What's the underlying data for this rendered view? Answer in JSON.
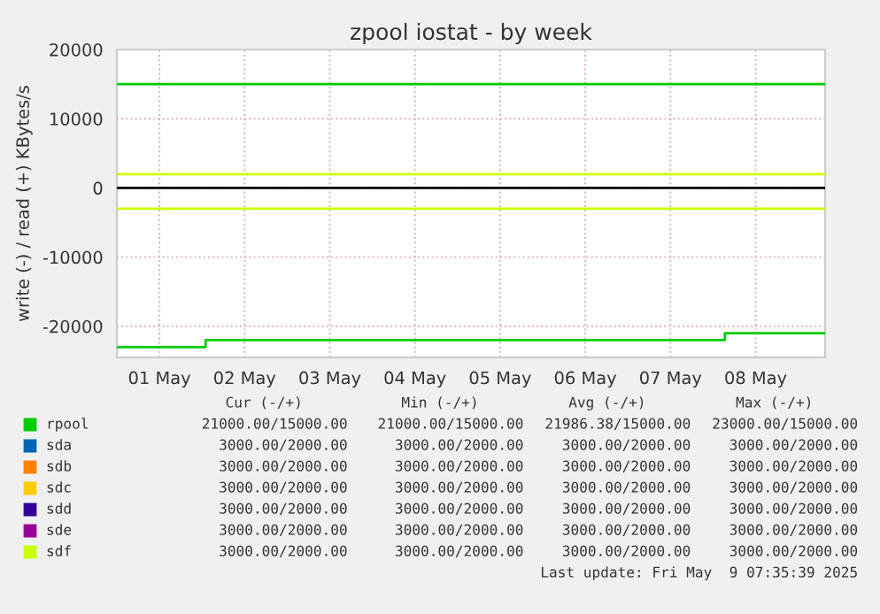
{
  "chart_data": {
    "type": "line",
    "title": "zpool iostat - by week",
    "ylabel": "write (-) / read (+) KBytes/s",
    "xlim": [
      "2025-05-01T00:00",
      "2025-05-09T07:35"
    ],
    "xticks": [
      {
        "value": "2025-05-01T12:00",
        "label": "01 May"
      },
      {
        "value": "2025-05-02T12:00",
        "label": "02 May"
      },
      {
        "value": "2025-05-03T12:00",
        "label": "03 May"
      },
      {
        "value": "2025-05-04T12:00",
        "label": "04 May"
      },
      {
        "value": "2025-05-05T12:00",
        "label": "05 May"
      },
      {
        "value": "2025-05-06T12:00",
        "label": "06 May"
      },
      {
        "value": "2025-05-07T12:00",
        "label": "07 May"
      },
      {
        "value": "2025-05-08T12:00",
        "label": "08 May"
      }
    ],
    "ylim": [
      -24500,
      20000
    ],
    "yticks": [
      -20000,
      -10000,
      0,
      10000,
      20000
    ],
    "grid": true,
    "legend": "bottom",
    "ref_lines": [
      {
        "axis": "y",
        "value": 0,
        "color": "#000000"
      }
    ],
    "series": [
      {
        "name": "rpool",
        "color": "#00cc00",
        "x": [
          "2025-05-01T00:00",
          "2025-05-09T07:35"
        ],
        "values": [
          15000,
          15000
        ]
      },
      {
        "color": "#00cc00",
        "type": "step",
        "x": [
          "2025-05-01T00:00",
          "2025-05-02T01:00",
          "2025-05-08T03:20",
          "2025-05-09T07:35"
        ],
        "values": [
          -23000,
          -22000,
          -21000,
          -21000
        ]
      },
      {
        "name": "sda",
        "color": "#0066b3",
        "values": [
          null,
          null
        ]
      },
      {
        "name": "sdb",
        "color": "#ff8000",
        "values": [
          null,
          null
        ]
      },
      {
        "name": "sdc",
        "color": "#ffcc00",
        "values": [
          null,
          null
        ]
      },
      {
        "name": "sdd",
        "color": "#330099",
        "values": [
          null,
          null
        ]
      },
      {
        "name": "sde",
        "color": "#990099",
        "values": [
          null,
          null
        ]
      },
      {
        "name": "sdf",
        "color": "#ccff00",
        "x": [
          "2025-05-01T00:00",
          "2025-05-09T07:35"
        ],
        "values": [
          2000,
          2000
        ]
      },
      {
        "color": "#ccff00",
        "x": [
          "2025-05-01T00:00",
          "2025-05-09T07:35"
        ],
        "values": [
          -3000,
          -3000
        ]
      }
    ],
    "annotations": [
      "Cur (-/+)",
      "Min (-/+)",
      "Avg (-/+)",
      "Max (-/+)",
      "21000.00/15000.00",
      "21000.00/15000.00",
      "21986.38/15000.00",
      "23000.00/15000.00",
      "3000.00/2000.00",
      "3000.00/2000.00",
      "3000.00/2000.00",
      "3000.00/2000.00",
      "3000.00/2000.00",
      "3000.00/2000.00",
      "3000.00/2000.00",
      "3000.00/2000.00",
      "3000.00/2000.00",
      "3000.00/2000.00",
      "3000.00/2000.00",
      "3000.00/2000.00",
      "3000.00/2000.00",
      "3000.00/2000.00",
      "3000.00/2000.00",
      "3000.00/2000.00",
      "3000.00/2000.00",
      "3000.00/2000.00",
      "3000.00/2000.00",
      "3000.00/2000.00",
      "3000.00/2000.00",
      "3000.00/2000.00",
      "3000.00/2000.00",
      "3000.00/2000.00",
      "Last update: Fri May  9 07:35:39 2025"
    ]
  }
}
